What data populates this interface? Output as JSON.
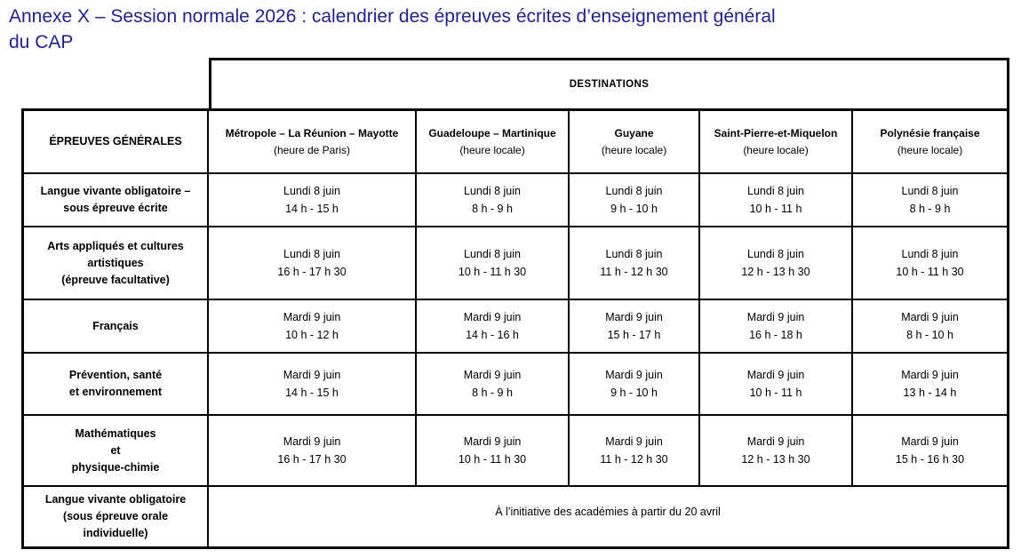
{
  "title_lines": [
    "Annexe X – Session normale 2026 : calendrier des épreuves écrites d’enseignement général",
    "du CAP"
  ],
  "colors": {
    "title": "#1f1f96",
    "table_border": "#000000",
    "text": "#000000",
    "background": "#ffffff"
  },
  "table": {
    "destinations_header": "DESTINATIONS",
    "col1_header": "ÉPREUVES GÉNÉRALES",
    "columns": [
      {
        "name": "Métropole – La Réunion – Mayotte",
        "note": "(heure de Paris)"
      },
      {
        "name": "Guadeloupe – Martinique",
        "note": "(heure locale)"
      },
      {
        "name": "Guyane",
        "note": "(heure locale)"
      },
      {
        "name": "Saint-Pierre-et-Miquelon",
        "note": "(heure locale)"
      },
      {
        "name": "Polynésie française",
        "note": "(heure locale)"
      }
    ],
    "rows": [
      {
        "label_lines": [
          "Langue vivante obligatoire –",
          "sous épreuve écrite"
        ],
        "cells": [
          {
            "date": "Lundi 8 juin",
            "time": "14 h - 15 h"
          },
          {
            "date": "Lundi 8 juin",
            "time": "8 h - 9 h"
          },
          {
            "date": "Lundi 8 juin",
            "time": "9 h - 10 h"
          },
          {
            "date": "Lundi 8 juin",
            "time": "10 h - 11 h"
          },
          {
            "date": "Lundi 8 juin",
            "time": "8 h - 9 h"
          }
        ]
      },
      {
        "label_lines": [
          "Arts appliqués et cultures",
          "artistiques",
          "(épreuve facultative)"
        ],
        "cells": [
          {
            "date": "Lundi 8 juin",
            "time": "16 h - 17 h 30"
          },
          {
            "date": "Lundi 8 juin",
            "time": "10 h - 11 h 30"
          },
          {
            "date": "Lundi 8 juin",
            "time": "11 h - 12 h 30"
          },
          {
            "date": "Lundi 8 juin",
            "time": "12 h - 13 h 30"
          },
          {
            "date": "Lundi 8 juin",
            "time": "10 h - 11 h 30"
          }
        ]
      },
      {
        "label_lines": [
          "Français"
        ],
        "cells": [
          {
            "date": "Mardi 9 juin",
            "time": "10 h - 12 h"
          },
          {
            "date": "Mardi 9 juin",
            "time": "14 h - 16 h"
          },
          {
            "date": "Mardi 9 juin",
            "time": "15 h - 17 h"
          },
          {
            "date": "Mardi 9 juin",
            "time": "16 h - 18 h"
          },
          {
            "date": "Mardi 9 juin",
            "time": "8 h - 10 h"
          }
        ]
      },
      {
        "label_lines": [
          "Prévention, santé",
          "et environnement"
        ],
        "cells": [
          {
            "date": "Mardi 9 juin",
            "time": "14 h - 15 h"
          },
          {
            "date": "Mardi 9 juin",
            "time": "8 h - 9 h"
          },
          {
            "date": "Mardi 9 juin",
            "time": "9 h - 10 h"
          },
          {
            "date": "Mardi 9 juin",
            "time": "10 h - 11 h"
          },
          {
            "date": "Mardi 9 juin",
            "time": "13 h - 14 h"
          }
        ]
      },
      {
        "label_lines": [
          "Mathématiques",
          "et",
          "physique-chimie"
        ],
        "cells": [
          {
            "date": "Mardi 9 juin",
            "time": "16 h - 17 h 30"
          },
          {
            "date": "Mardi 9 juin",
            "time": "10 h - 11 h 30"
          },
          {
            "date": "Mardi 9 juin",
            "time": "11 h - 12 h 30"
          },
          {
            "date": "Mardi 9 juin",
            "time": "12 h - 13 h 30"
          },
          {
            "date": "Mardi 9 juin",
            "time": "15 h - 16 h 30"
          }
        ]
      },
      {
        "label_lines": [
          "Langue vivante obligatoire",
          "(sous épreuve orale",
          "individuelle)"
        ],
        "span_text": "À l’initiative des académies à partir du 20 avril"
      }
    ]
  }
}
